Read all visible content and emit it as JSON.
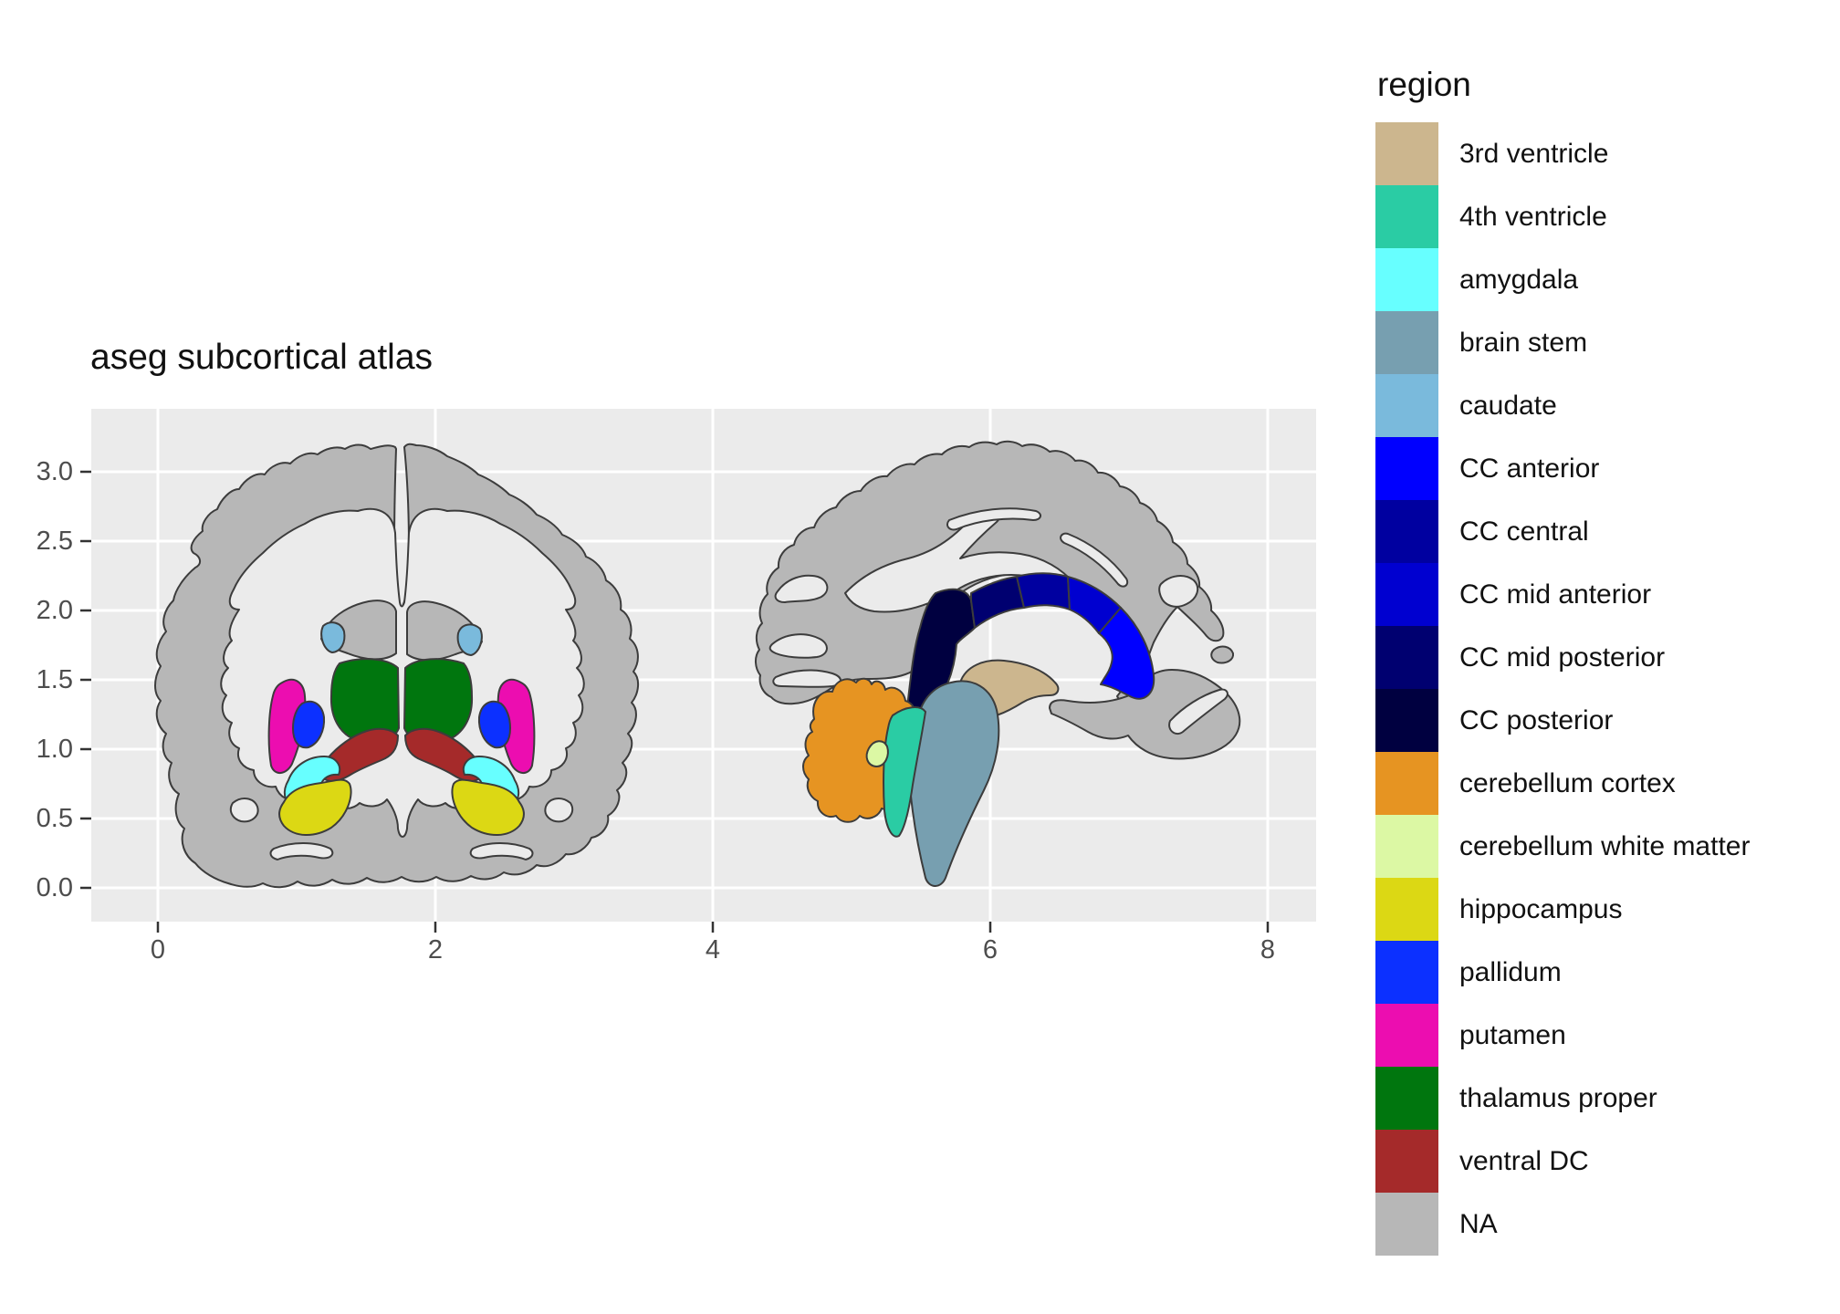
{
  "title": "aseg subcortical atlas",
  "axes": {
    "x": {
      "ticks": [
        "0",
        "2",
        "4",
        "6",
        "8"
      ],
      "values": [
        0,
        2,
        4,
        6,
        8
      ]
    },
    "y": {
      "ticks": [
        "3.0",
        "2.5",
        "2.0",
        "1.5",
        "1.0",
        "0.5",
        "0.0"
      ],
      "values": [
        3.0,
        2.5,
        2.0,
        1.5,
        1.0,
        0.5,
        0.0
      ]
    }
  },
  "panel": {
    "background": "#EBEBEB",
    "gridline": "#FFFFFF"
  },
  "legend": {
    "title": "region",
    "items": [
      "3rd ventricle",
      "4th ventricle",
      "amygdala",
      "brain stem",
      "caudate",
      "CC anterior",
      "CC central",
      "CC mid anterior",
      "CC mid posterior",
      "CC posterior",
      "cerebellum cortex",
      "cerebellum white matter",
      "hippocampus",
      "pallidum",
      "putamen",
      "thalamus proper",
      "ventral DC",
      "NA"
    ]
  },
  "region_colors": {
    "3rd ventricle": "#CCB68E",
    "4th ventricle": "#2ACCA4",
    "amygdala": "#67FFFF",
    "brain stem": "#779FB0",
    "caudate": "#7ABADC",
    "CC anterior": "#0000FF",
    "CC central": "#0000A0",
    "CC mid anterior": "#0000D0",
    "CC mid posterior": "#000070",
    "CC posterior": "#000040",
    "cerebellum cortex": "#E69422",
    "cerebellum white matter": "#DCF8A4",
    "hippocampus": "#DCD814",
    "pallidum": "#0C30FF",
    "putamen": "#EC0DB0",
    "thalamus proper": "#00760E",
    "ventral DC": "#A52A2A",
    "NA": "#B7B7B7"
  },
  "chart_data": {
    "type": "other",
    "subtype": "anatomical polygon atlas (ggseg-style brain segmentation plot)",
    "title": "aseg subcortical atlas",
    "legend_title": "region",
    "legend_position": "right",
    "views": [
      "coronal slice (left of panel)",
      "sagittal slice (right of panel)"
    ],
    "x_ticks": [
      0,
      2,
      4,
      6,
      8
    ],
    "y_ticks": [
      3.0,
      2.5,
      2.0,
      1.5,
      1.0,
      0.5,
      0.0
    ],
    "xlim": [
      -0.48,
      8.35
    ],
    "ylim": [
      -0.24,
      3.45
    ],
    "grid": true,
    "panel_background": "#EBEBEB",
    "regions": [
      {
        "label": "3rd ventricle",
        "color": "#CCB68E",
        "slice": "sagittal"
      },
      {
        "label": "4th ventricle",
        "color": "#2ACCA4",
        "slice": "sagittal"
      },
      {
        "label": "amygdala",
        "color": "#67FFFF",
        "slice": "coronal (bilateral)"
      },
      {
        "label": "brain stem",
        "color": "#779FB0",
        "slice": "sagittal"
      },
      {
        "label": "caudate",
        "color": "#7ABADC",
        "slice": "coronal (bilateral)"
      },
      {
        "label": "CC anterior",
        "color": "#0000FF",
        "slice": "sagittal"
      },
      {
        "label": "CC central",
        "color": "#0000A0",
        "slice": "sagittal"
      },
      {
        "label": "CC mid anterior",
        "color": "#0000D0",
        "slice": "sagittal"
      },
      {
        "label": "CC mid posterior",
        "color": "#000070",
        "slice": "sagittal"
      },
      {
        "label": "CC posterior",
        "color": "#000040",
        "slice": "sagittal"
      },
      {
        "label": "cerebellum cortex",
        "color": "#E69422",
        "slice": "sagittal"
      },
      {
        "label": "cerebellum white matter",
        "color": "#DCF8A4",
        "slice": "sagittal"
      },
      {
        "label": "hippocampus",
        "color": "#DCD814",
        "slice": "coronal (bilateral)"
      },
      {
        "label": "pallidum",
        "color": "#0C30FF",
        "slice": "coronal (bilateral)"
      },
      {
        "label": "putamen",
        "color": "#EC0DB0",
        "slice": "coronal (bilateral)"
      },
      {
        "label": "thalamus proper",
        "color": "#00760E",
        "slice": "coronal (bilateral)"
      },
      {
        "label": "ventral DC",
        "color": "#A52A2A",
        "slice": "coronal (bilateral)"
      },
      {
        "label": "NA",
        "color": "#B7B7B7",
        "slice": "cortex / unlabeled"
      }
    ]
  }
}
